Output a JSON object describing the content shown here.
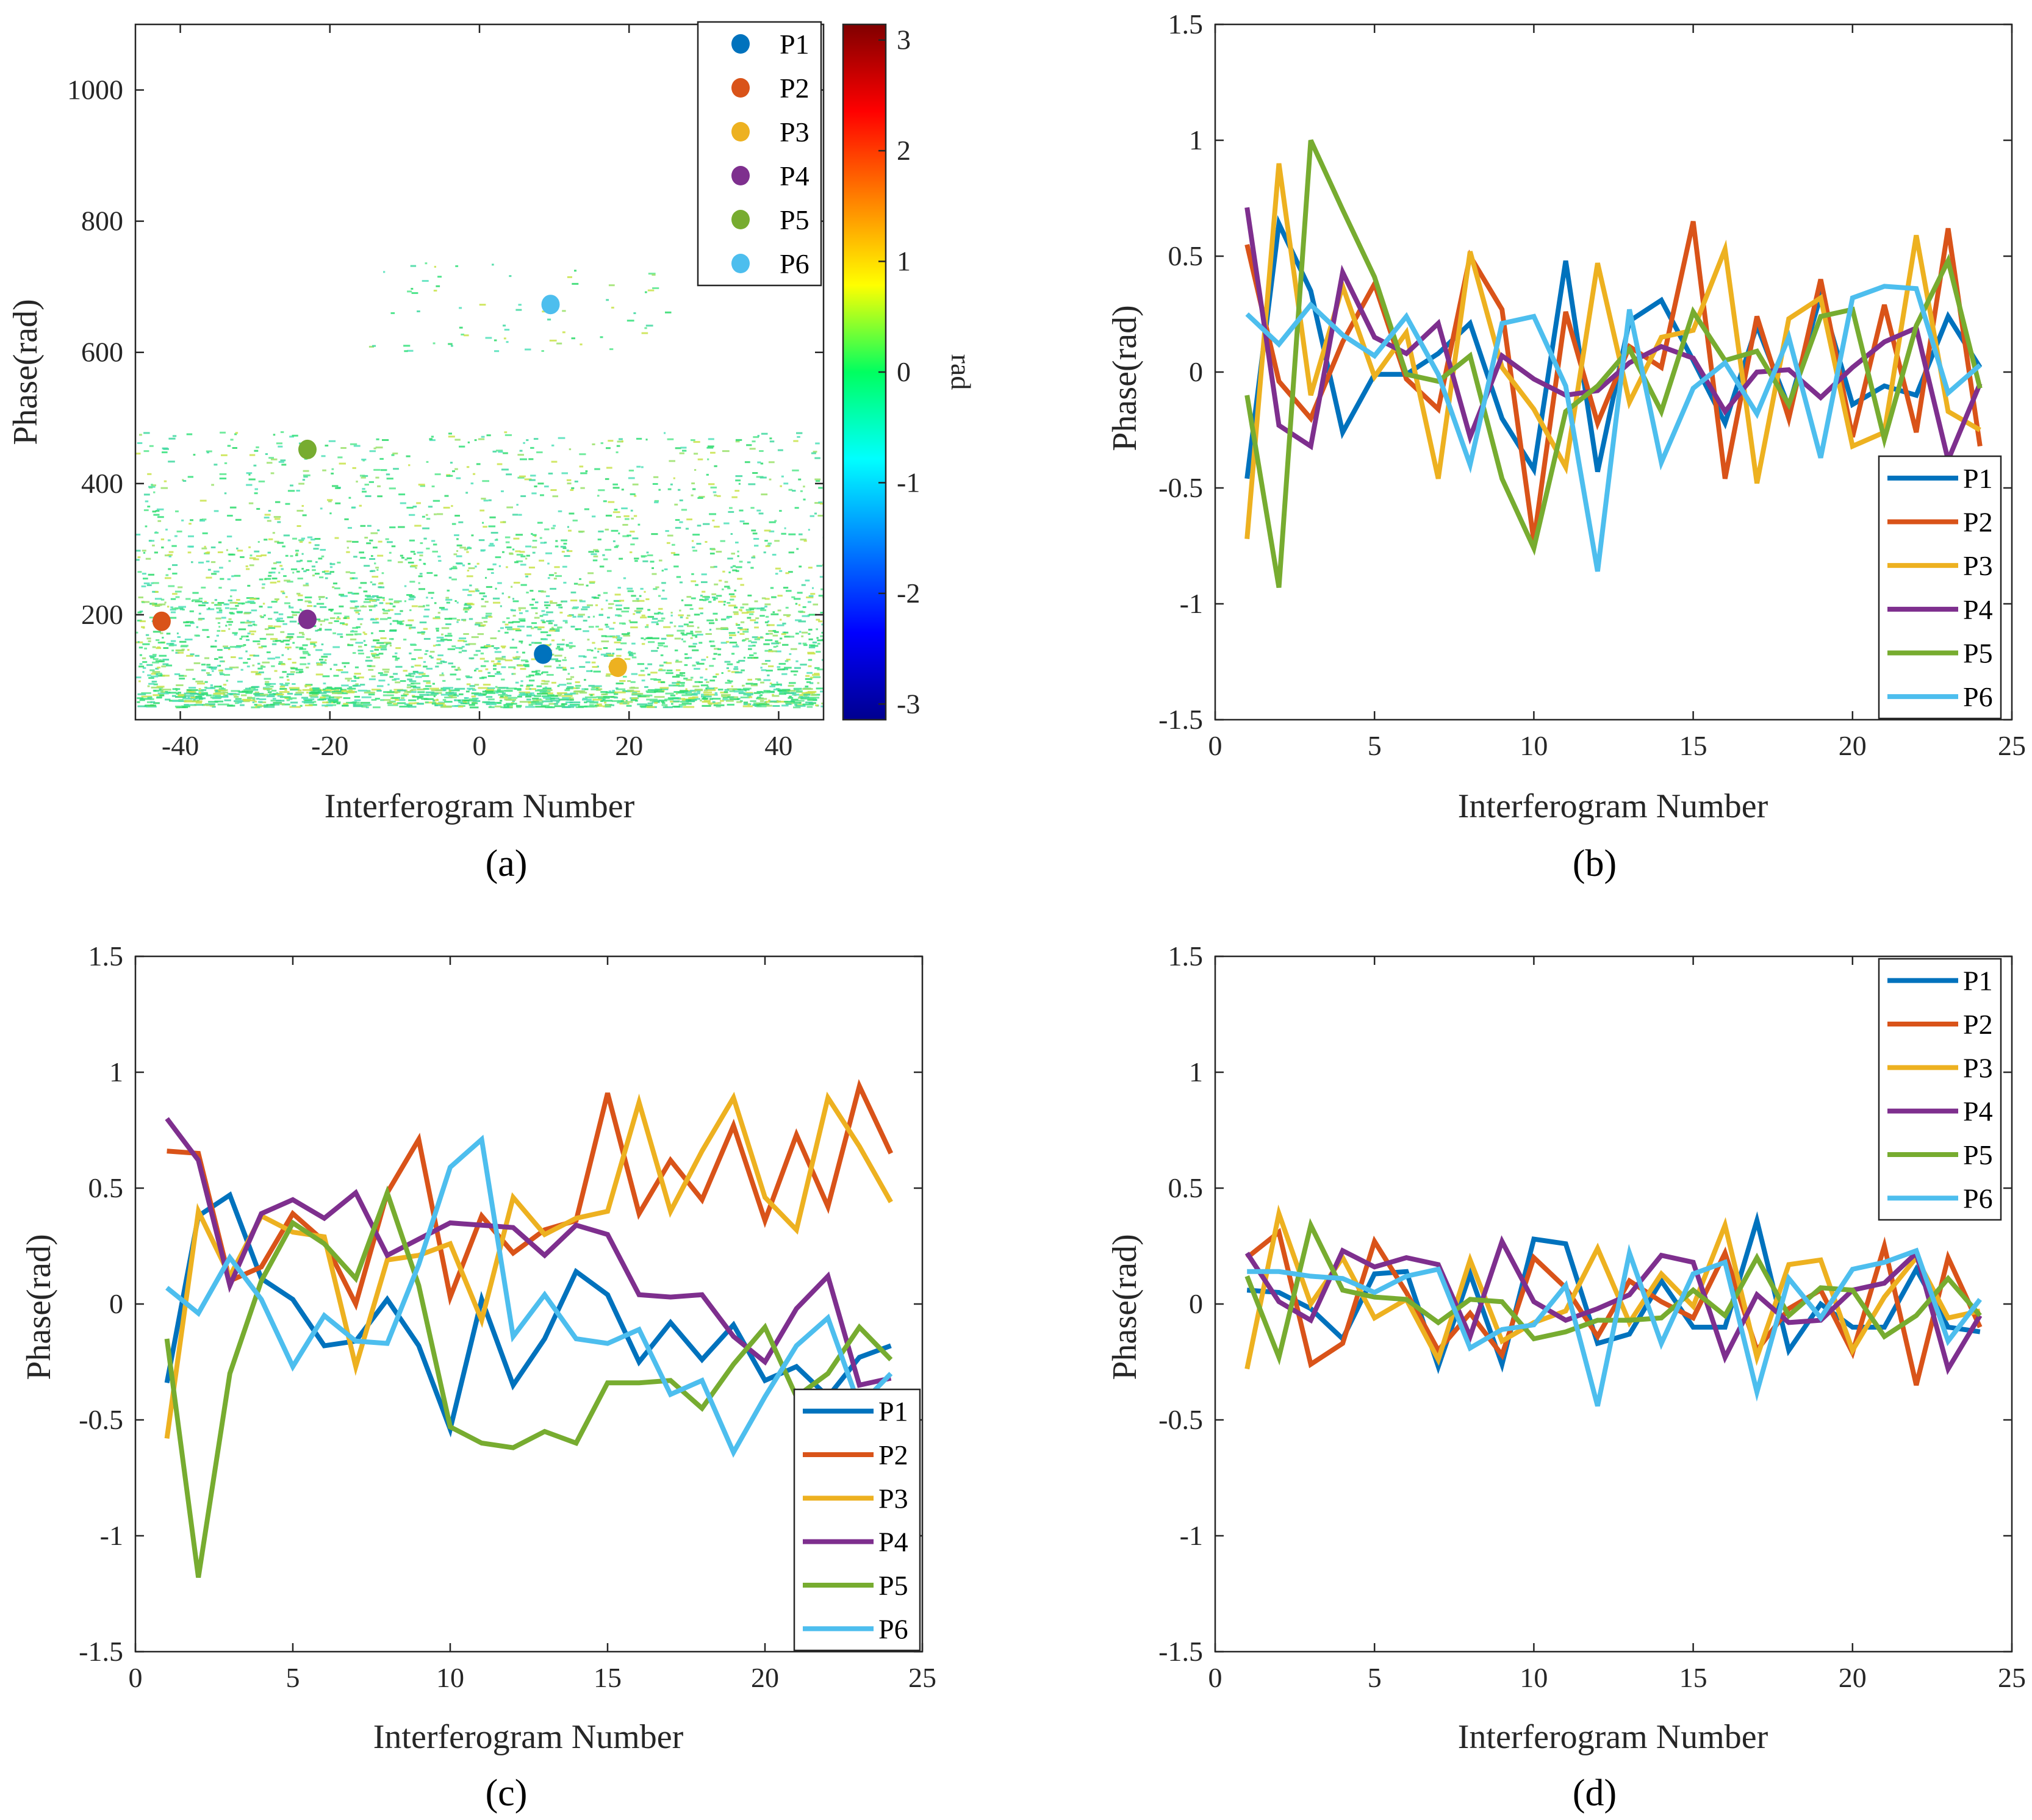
{
  "colors": {
    "P1": "#0072BD",
    "P2": "#D95319",
    "P3": "#EDB120",
    "P4": "#7E2F8E",
    "P5": "#77AC30",
    "P6": "#4DBEEE"
  },
  "chart_data": [
    {
      "id": "a",
      "type": "heatmap",
      "panel_label": "(a)",
      "xlabel": "Interferogram Number",
      "ylabel": "Phase(rad)",
      "xlim": [
        -46,
        46
      ],
      "ylim": [
        40,
        1100
      ],
      "xticks": [
        "-40",
        "-20",
        "0",
        "20",
        "40"
      ],
      "xtick_values": [
        -40,
        -20,
        0,
        20,
        40
      ],
      "yticks": [
        "200",
        "400",
        "600",
        "800",
        "1000"
      ],
      "ytick_values": [
        200,
        400,
        600,
        800,
        1000
      ],
      "colorbar": {
        "label": "rad",
        "ticks": [
          "-3",
          "-2",
          "-1",
          "0",
          "1",
          "2",
          "3"
        ],
        "tick_values": [
          -3,
          -2,
          -1,
          0,
          1,
          2,
          3
        ],
        "range": [
          -3.1416,
          3.1416
        ],
        "colormap": "jet"
      },
      "points": [
        {
          "name": "P1",
          "x": 8.5,
          "y": 140
        },
        {
          "name": "P2",
          "x": -42.5,
          "y": 190
        },
        {
          "name": "P3",
          "x": 18.5,
          "y": 120
        },
        {
          "name": "P4",
          "x": -23,
          "y": 193
        },
        {
          "name": "P5",
          "x": -23,
          "y": 452
        },
        {
          "name": "P6",
          "x": 9.5,
          "y": 673
        }
      ],
      "legend": [
        "P1",
        "P2",
        "P3",
        "P4",
        "P5",
        "P6"
      ],
      "legend_position": "top-right"
    },
    {
      "id": "b",
      "type": "line",
      "panel_label": "(b)",
      "xlabel": "Interferogram Number",
      "ylabel": "Phase(rad)",
      "xlim": [
        0,
        25
      ],
      "ylim": [
        -1.5,
        1.5
      ],
      "xticks": [
        "0",
        "5",
        "10",
        "15",
        "20",
        "25"
      ],
      "xtick_values": [
        0,
        5,
        10,
        15,
        20,
        25
      ],
      "yticks": [
        "-1.5",
        "-1",
        "-0.5",
        "0",
        "0.5",
        "1",
        "1.5"
      ],
      "ytick_values": [
        -1.5,
        -1,
        -0.5,
        0,
        0.5,
        1,
        1.5
      ],
      "x": [
        1,
        2,
        3,
        4,
        5,
        6,
        7,
        8,
        9,
        10,
        11,
        12,
        13,
        14,
        15,
        16,
        17,
        18,
        19,
        20,
        21,
        22,
        23,
        24
      ],
      "series": [
        {
          "name": "P1",
          "values": [
            -0.46,
            0.64,
            0.35,
            -0.26,
            -0.01,
            -0.01,
            0.08,
            0.21,
            -0.2,
            -0.42,
            0.48,
            -0.43,
            0.22,
            0.31,
            0.05,
            -0.22,
            0.2,
            -0.15,
            0.33,
            -0.14,
            -0.06,
            -0.1,
            0.24,
            0.02
          ]
        },
        {
          "name": "P2",
          "values": [
            0.55,
            -0.04,
            -0.2,
            0.13,
            0.38,
            -0.03,
            -0.16,
            0.5,
            0.27,
            -0.73,
            0.26,
            -0.22,
            0.11,
            0.02,
            0.65,
            -0.46,
            0.24,
            -0.2,
            0.4,
            -0.28,
            0.29,
            -0.26,
            0.62,
            -0.32
          ]
        },
        {
          "name": "P3",
          "values": [
            -0.72,
            0.9,
            -0.1,
            0.37,
            -0.02,
            0.17,
            -0.46,
            0.52,
            0.02,
            -0.16,
            -0.41,
            0.47,
            -0.13,
            0.15,
            0.18,
            0.53,
            -0.48,
            0.23,
            0.32,
            -0.32,
            -0.26,
            0.59,
            -0.17,
            -0.25
          ]
        },
        {
          "name": "P4",
          "values": [
            0.71,
            -0.23,
            -0.32,
            0.43,
            0.15,
            0.08,
            0.21,
            -0.28,
            0.07,
            -0.03,
            -0.1,
            -0.08,
            0.04,
            0.11,
            0.06,
            -0.17,
            0.0,
            0.01,
            -0.11,
            0.02,
            0.13,
            0.19,
            -0.38,
            -0.05
          ]
        },
        {
          "name": "P5",
          "values": [
            -0.1,
            -0.93,
            1.0,
            0.7,
            0.41,
            -0.01,
            -0.04,
            0.07,
            -0.46,
            -0.76,
            -0.17,
            -0.06,
            0.1,
            -0.17,
            0.26,
            0.05,
            0.09,
            -0.14,
            0.24,
            0.27,
            -0.29,
            0.2,
            0.48,
            -0.07
          ]
        },
        {
          "name": "P6",
          "values": [
            0.25,
            0.12,
            0.29,
            0.16,
            0.07,
            0.24,
            -0.01,
            -0.4,
            0.21,
            0.24,
            -0.06,
            -0.86,
            0.27,
            -0.39,
            -0.07,
            0.04,
            -0.18,
            0.15,
            -0.37,
            0.32,
            0.37,
            0.36,
            -0.09,
            0.03
          ]
        }
      ],
      "legend": [
        "P1",
        "P2",
        "P3",
        "P4",
        "P5",
        "P6"
      ],
      "legend_position": "bottom-right"
    },
    {
      "id": "c",
      "type": "line",
      "panel_label": "(c)",
      "xlabel": "Interferogram Number",
      "ylabel": "Phase(rad)",
      "xlim": [
        0,
        25
      ],
      "ylim": [
        -1.5,
        1.5
      ],
      "xticks": [
        "0",
        "5",
        "10",
        "15",
        "20",
        "25"
      ],
      "xtick_values": [
        0,
        5,
        10,
        15,
        20,
        25
      ],
      "yticks": [
        "-1.5",
        "-1",
        "-0.5",
        "0",
        "0.5",
        "1",
        "1.5"
      ],
      "ytick_values": [
        -1.5,
        -1,
        -0.5,
        0,
        0.5,
        1,
        1.5
      ],
      "x": [
        1,
        2,
        3,
        4,
        5,
        6,
        7,
        8,
        9,
        10,
        11,
        12,
        13,
        14,
        15,
        16,
        17,
        18,
        19,
        20,
        21,
        22,
        23,
        24
      ],
      "series": [
        {
          "name": "P1",
          "values": [
            -0.34,
            0.38,
            0.47,
            0.11,
            0.02,
            -0.18,
            -0.16,
            0.02,
            -0.18,
            -0.54,
            0.02,
            -0.35,
            -0.15,
            0.14,
            0.04,
            -0.25,
            -0.08,
            -0.24,
            -0.09,
            -0.33,
            -0.27,
            -0.4,
            -0.23,
            -0.18
          ]
        },
        {
          "name": "P2",
          "values": [
            0.66,
            0.65,
            0.1,
            0.16,
            0.39,
            0.27,
            0.0,
            0.48,
            0.71,
            0.03,
            0.38,
            0.22,
            0.32,
            0.36,
            0.91,
            0.39,
            0.62,
            0.45,
            0.77,
            0.36,
            0.73,
            0.42,
            0.94,
            0.65
          ]
        },
        {
          "name": "P3",
          "values": [
            -0.58,
            0.4,
            0.12,
            0.38,
            0.31,
            0.29,
            -0.27,
            0.19,
            0.21,
            0.26,
            -0.07,
            0.46,
            0.3,
            0.37,
            0.4,
            0.87,
            0.4,
            0.66,
            0.89,
            0.46,
            0.32,
            0.89,
            0.68,
            0.44
          ]
        },
        {
          "name": "P4",
          "values": [
            0.8,
            0.62,
            0.08,
            0.39,
            0.45,
            0.37,
            0.48,
            0.21,
            0.28,
            0.35,
            0.34,
            0.33,
            0.21,
            0.34,
            0.3,
            0.04,
            0.03,
            0.04,
            -0.14,
            -0.25,
            -0.02,
            0.12,
            -0.35,
            -0.32
          ]
        },
        {
          "name": "P5",
          "values": [
            -0.15,
            -1.18,
            -0.3,
            0.1,
            0.35,
            0.26,
            0.11,
            0.48,
            0.08,
            -0.53,
            -0.6,
            -0.62,
            -0.55,
            -0.6,
            -0.34,
            -0.34,
            -0.33,
            -0.45,
            -0.26,
            -0.1,
            -0.4,
            -0.3,
            -0.1,
            -0.24
          ]
        },
        {
          "name": "P6",
          "values": [
            0.07,
            -0.04,
            0.2,
            0.02,
            -0.27,
            -0.05,
            -0.16,
            -0.17,
            0.17,
            0.59,
            0.71,
            -0.14,
            0.04,
            -0.15,
            -0.17,
            -0.11,
            -0.39,
            -0.33,
            -0.64,
            -0.4,
            -0.18,
            -0.06,
            -0.44,
            -0.3
          ]
        }
      ],
      "legend": [
        "P1",
        "P2",
        "P3",
        "P4",
        "P5",
        "P6"
      ],
      "legend_position": "bottom-right"
    },
    {
      "id": "d",
      "type": "line",
      "panel_label": "(d)",
      "xlabel": "Interferogram Number",
      "ylabel": "Phase(rad)",
      "xlim": [
        0,
        25
      ],
      "ylim": [
        -1.5,
        1.5
      ],
      "xticks": [
        "0",
        "5",
        "10",
        "15",
        "20",
        "25"
      ],
      "xtick_values": [
        0,
        5,
        10,
        15,
        20,
        25
      ],
      "yticks": [
        "-1.5",
        "-1",
        "-0.5",
        "0",
        "0.5",
        "1",
        "1.5"
      ],
      "ytick_values": [
        -1.5,
        -1,
        -0.5,
        0,
        0.5,
        1,
        1.5
      ],
      "x": [
        1,
        2,
        3,
        4,
        5,
        6,
        7,
        8,
        9,
        10,
        11,
        12,
        13,
        14,
        15,
        16,
        17,
        18,
        19,
        20,
        21,
        22,
        23,
        24
      ],
      "series": [
        {
          "name": "P1",
          "values": [
            0.06,
            0.05,
            -0.02,
            -0.15,
            0.13,
            0.14,
            -0.27,
            0.13,
            -0.26,
            0.28,
            0.26,
            -0.17,
            -0.13,
            0.1,
            -0.1,
            -0.1,
            0.36,
            -0.2,
            0.0,
            -0.1,
            -0.1,
            0.15,
            -0.1,
            -0.12
          ]
        },
        {
          "name": "P2",
          "values": [
            0.2,
            0.31,
            -0.26,
            -0.17,
            0.27,
            0.05,
            -0.2,
            -0.04,
            -0.22,
            0.2,
            0.07,
            -0.14,
            0.1,
            0.01,
            -0.06,
            0.22,
            -0.2,
            -0.02,
            0.06,
            -0.21,
            0.25,
            -0.35,
            0.2,
            -0.1
          ]
        },
        {
          "name": "P3",
          "values": [
            -0.28,
            0.39,
            0.0,
            0.2,
            -0.06,
            0.02,
            -0.24,
            0.19,
            -0.16,
            -0.08,
            -0.03,
            0.24,
            -0.08,
            0.13,
            -0.01,
            0.34,
            -0.23,
            0.17,
            0.19,
            -0.2,
            0.03,
            0.2,
            -0.06,
            -0.03
          ]
        },
        {
          "name": "P4",
          "values": [
            0.22,
            0.01,
            -0.07,
            0.23,
            0.16,
            0.2,
            0.17,
            -0.14,
            0.27,
            0.01,
            -0.07,
            -0.02,
            0.04,
            0.21,
            0.18,
            -0.23,
            0.04,
            -0.08,
            -0.07,
            0.06,
            0.09,
            0.22,
            -0.28,
            -0.05
          ]
        },
        {
          "name": "P5",
          "values": [
            0.12,
            -0.23,
            0.34,
            0.06,
            0.03,
            0.02,
            -0.08,
            0.02,
            0.01,
            -0.15,
            -0.12,
            -0.07,
            -0.07,
            -0.06,
            0.06,
            -0.05,
            0.2,
            -0.05,
            0.07,
            0.06,
            -0.14,
            -0.05,
            0.11,
            -0.05
          ]
        },
        {
          "name": "P6",
          "values": [
            0.14,
            0.14,
            0.12,
            0.11,
            0.05,
            0.12,
            0.15,
            -0.19,
            -0.11,
            -0.09,
            0.08,
            -0.44,
            0.22,
            -0.17,
            0.13,
            0.18,
            -0.38,
            0.11,
            -0.06,
            0.15,
            0.18,
            0.23,
            -0.16,
            0.02
          ]
        }
      ],
      "legend": [
        "P1",
        "P2",
        "P3",
        "P4",
        "P5",
        "P6"
      ],
      "legend_position": "top-right"
    }
  ]
}
